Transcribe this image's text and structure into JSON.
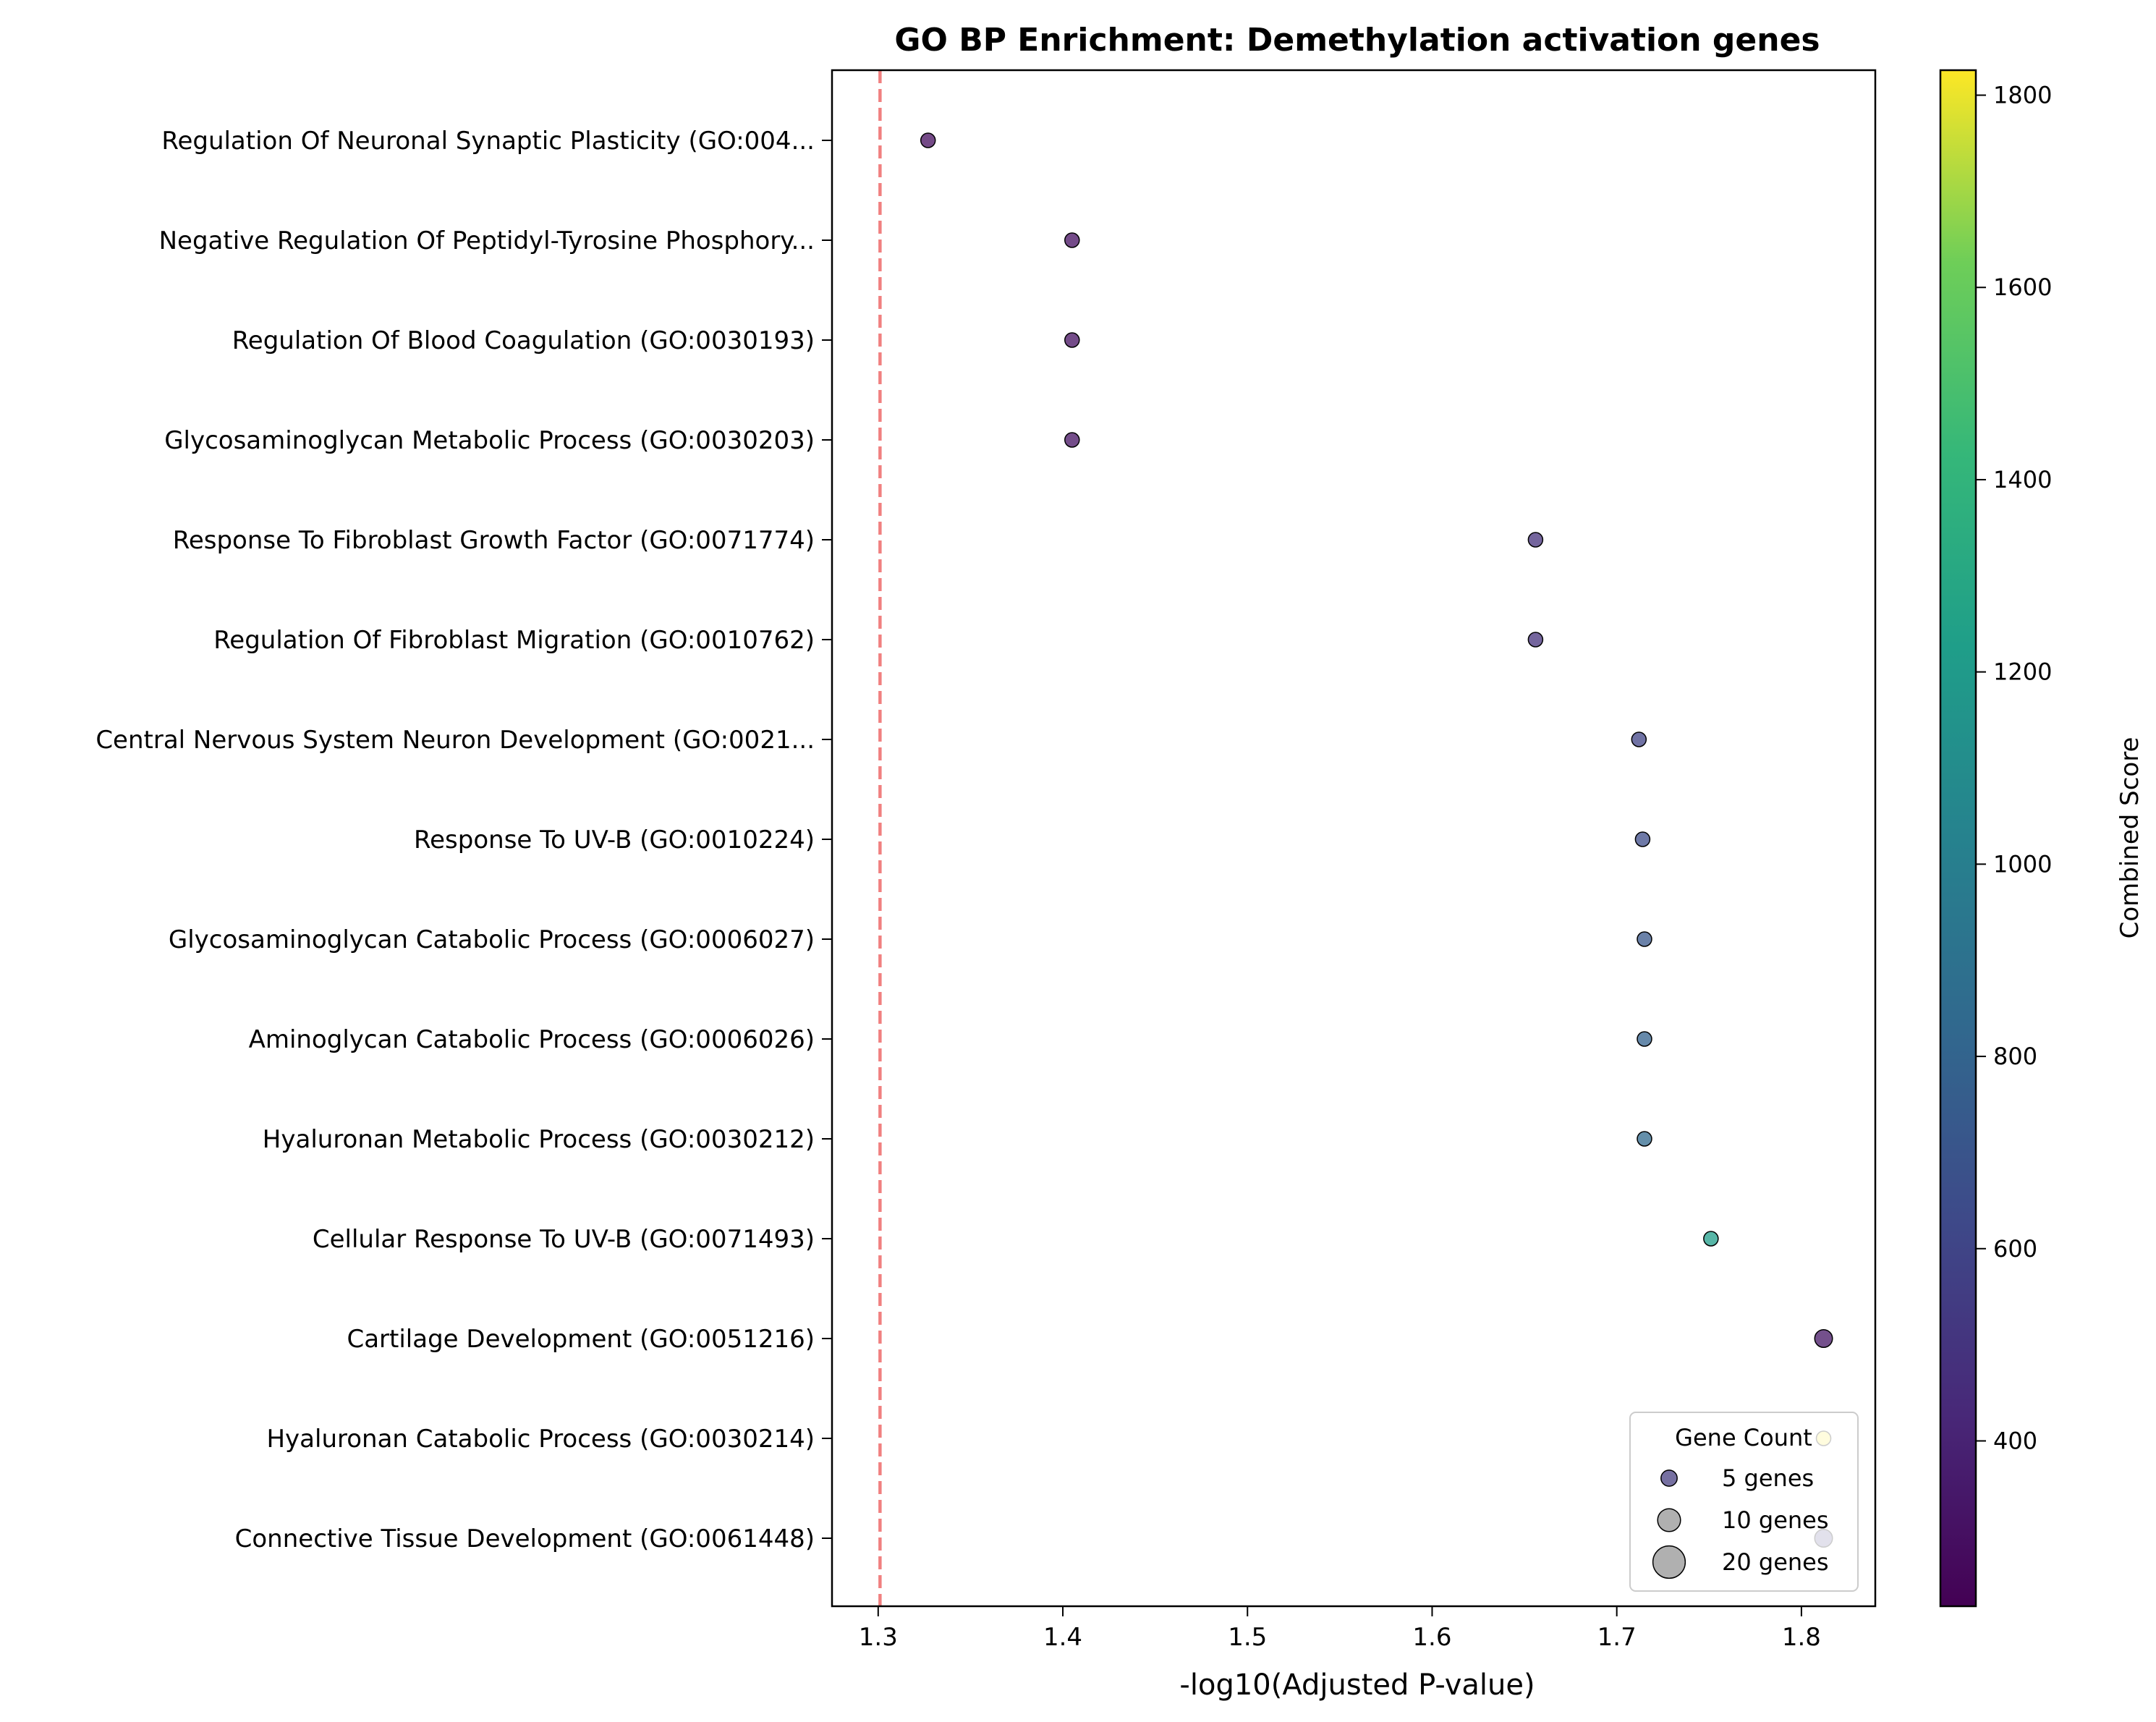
{
  "chart_data": {
    "type": "scatter",
    "title": "GO BP Enrichment: Demethylation activation genes",
    "xlabel": "-log10(Adjusted P-value)",
    "ylabel": "",
    "xlim": [
      1.275,
      1.84
    ],
    "xticks": [
      "1.3",
      "1.4",
      "1.5",
      "1.6",
      "1.7",
      "1.8"
    ],
    "threshold_line": {
      "x": 1.301,
      "color": "#f08080",
      "style": "dashed"
    },
    "colorbar": {
      "label": "Combined Score",
      "range": [
        228,
        1826
      ],
      "ticks": [
        "400",
        "600",
        "800",
        "1000",
        "1200",
        "1400",
        "1600",
        "1800"
      ],
      "colormap": "viridis"
    },
    "points": [
      {
        "term": "Regulation Of Neuronal Synaptic Plasticity (GO:004...",
        "x": 1.327,
        "score": 290,
        "genes": 4
      },
      {
        "term": "Negative Regulation Of Peptidyl-Tyrosine Phosphory...",
        "x": 1.405,
        "score": 300,
        "genes": 4
      },
      {
        "term": "Regulation Of Blood Coagulation (GO:0030193)",
        "x": 1.405,
        "score": 305,
        "genes": 4
      },
      {
        "term": "Glycosaminoglycan Metabolic Process (GO:0030203)",
        "x": 1.405,
        "score": 310,
        "genes": 4
      },
      {
        "term": "Response To Fibroblast Growth Factor (GO:0071774)",
        "x": 1.656,
        "score": 480,
        "genes": 4
      },
      {
        "term": "Regulation Of Fibroblast Migration (GO:0010762)",
        "x": 1.656,
        "score": 480,
        "genes": 4
      },
      {
        "term": "Central Nervous System Neuron Development (GO:0021...",
        "x": 1.712,
        "score": 590,
        "genes": 4
      },
      {
        "term": "Response To UV-B (GO:0010224)",
        "x": 1.714,
        "score": 650,
        "genes": 4
      },
      {
        "term": "Glycosaminoglycan Catabolic Process (GO:0006027)",
        "x": 1.715,
        "score": 720,
        "genes": 4
      },
      {
        "term": "Aminoglycan Catabolic Process (GO:0006026)",
        "x": 1.715,
        "score": 790,
        "genes": 4
      },
      {
        "term": "Hyaluronan Metabolic Process (GO:0030212)",
        "x": 1.715,
        "score": 840,
        "genes": 4
      },
      {
        "term": "Cellular Response To UV-B (GO:0071493)",
        "x": 1.751,
        "score": 1230,
        "genes": 4
      },
      {
        "term": "Cartilage Development (GO:0051216)",
        "x": 1.812,
        "score": 330,
        "genes": 6
      },
      {
        "term": "Hyaluronan Catabolic Process (GO:0030214)",
        "x": 1.812,
        "score": 1826,
        "genes": 4
      },
      {
        "term": "Connective Tissue Development (GO:0061448)",
        "x": 1.812,
        "score": 540,
        "genes": 6
      }
    ],
    "legend": {
      "title": "Gene Count",
      "placement": "lower-right",
      "entries": [
        {
          "label": "5 genes",
          "genes": 5
        },
        {
          "label": "10 genes",
          "genes": 10
        },
        {
          "label": "20 genes",
          "genes": 20
        }
      ]
    },
    "grid": false
  }
}
